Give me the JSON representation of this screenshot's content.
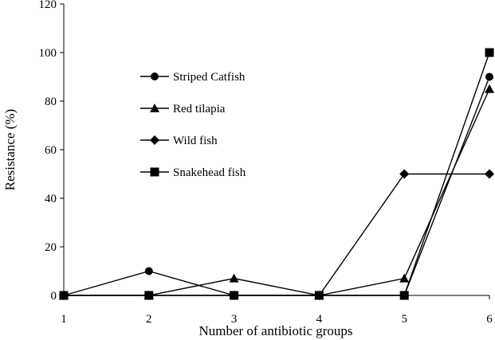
{
  "chart_data": {
    "type": "line",
    "xlabel": "Number of antibiotic groups",
    "ylabel": "Resistance (%)",
    "x": [
      1,
      2,
      3,
      4,
      5,
      6
    ],
    "xlim": [
      1,
      6
    ],
    "ylim": [
      0,
      120
    ],
    "x_ticks": [
      "1",
      "2",
      "3",
      "4",
      "5",
      "6"
    ],
    "y_ticks": [
      "0",
      "20",
      "40",
      "60",
      "80",
      "100",
      "120"
    ],
    "grid": false,
    "legend_position": "upper-left-inside",
    "series": [
      {
        "name": "Striped Catfish",
        "marker": "circle",
        "values": [
          0,
          10,
          0,
          0,
          0,
          90
        ]
      },
      {
        "name": "Red tilapia",
        "marker": "triangle",
        "values": [
          0,
          0,
          7,
          0,
          7,
          85
        ]
      },
      {
        "name": "Wild fish",
        "marker": "diamond",
        "values": [
          0,
          0,
          0,
          0,
          50,
          50
        ]
      },
      {
        "name": "Snakehead fish",
        "marker": "square",
        "values": [
          0,
          0,
          0,
          0,
          0,
          100
        ]
      }
    ],
    "colors": {
      "line": "#000000",
      "marker": "#000000"
    }
  }
}
